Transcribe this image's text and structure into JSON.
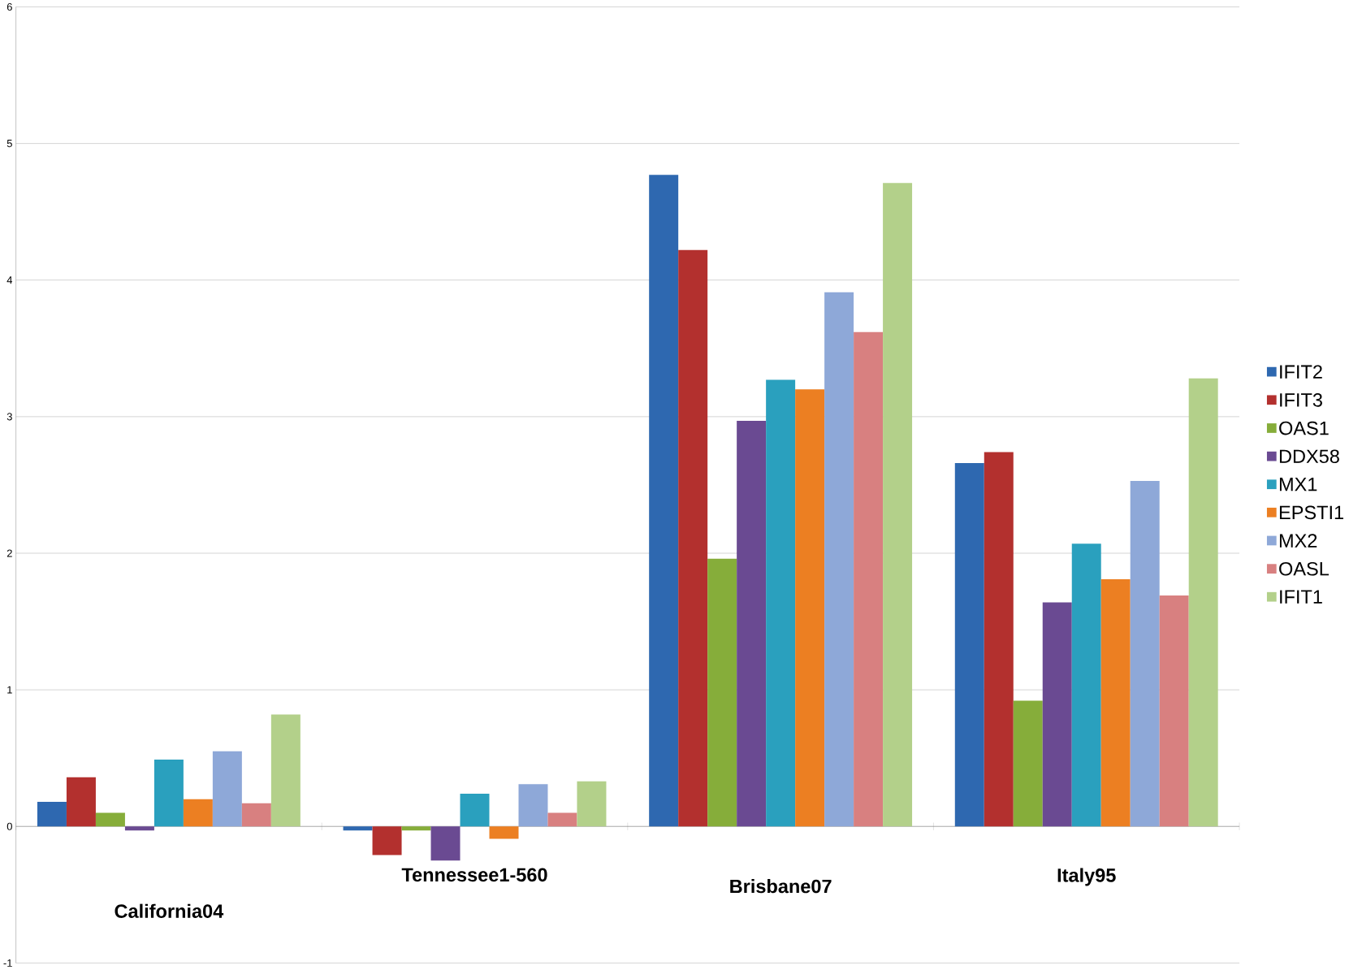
{
  "chart_data": {
    "type": "bar",
    "categories": [
      "California04",
      "Tennessee1-560",
      "Brisbane07",
      "Italy95"
    ],
    "series": [
      {
        "name": "IFIT2",
        "color": "#2e68b0",
        "values": [
          0.18,
          -0.03,
          4.77,
          2.66
        ]
      },
      {
        "name": "IFIT3",
        "color": "#b3302e",
        "values": [
          0.36,
          -0.21,
          4.22,
          2.74
        ]
      },
      {
        "name": "OAS1",
        "color": "#86ad3a",
        "values": [
          0.1,
          -0.03,
          1.96,
          0.92
        ]
      },
      {
        "name": "DDX58",
        "color": "#6a4a92",
        "values": [
          -0.03,
          -0.25,
          2.97,
          1.64
        ]
      },
      {
        "name": "MX1",
        "color": "#2aa0be",
        "values": [
          0.49,
          0.24,
          3.27,
          2.07
        ]
      },
      {
        "name": "EPSTI1",
        "color": "#ec7f22",
        "values": [
          0.2,
          -0.09,
          3.2,
          1.81
        ]
      },
      {
        "name": "MX2",
        "color": "#8ea8d8",
        "values": [
          0.55,
          0.31,
          3.91,
          2.53
        ]
      },
      {
        "name": "OASL",
        "color": "#d88080",
        "values": [
          0.17,
          0.1,
          3.62,
          1.69
        ]
      },
      {
        "name": "IFIT1",
        "color": "#b3d08a",
        "values": [
          0.82,
          0.33,
          4.71,
          3.28
        ]
      }
    ],
    "ylim": [
      -1,
      6
    ],
    "yticks": [
      -1,
      0,
      1,
      2,
      3,
      4,
      5,
      6
    ],
    "grid": "y",
    "legend": "right"
  }
}
